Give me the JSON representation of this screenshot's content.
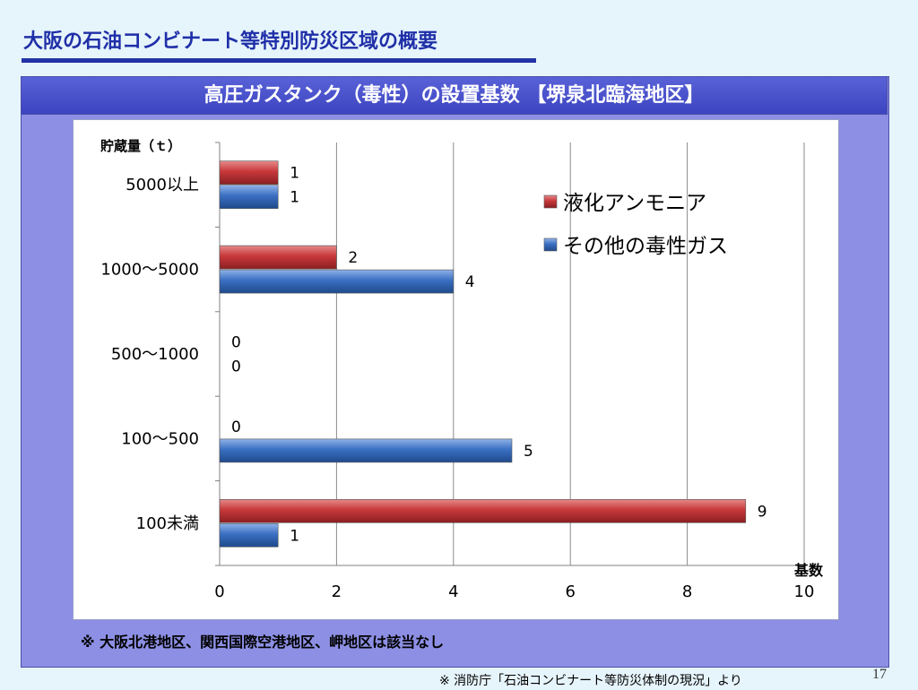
{
  "slide": {
    "title": "大阪の石油コンビナート等特別防災区域の概要",
    "note": "※ 大阪北港地区、関西国際空港地区、岬地区は該当なし",
    "source": "※ 消防庁「石油コンビナート等防災体制の現況」より",
    "page_number": "17"
  },
  "colors": {
    "series_red": "#c0383a",
    "series_blue": "#3a6fc2",
    "panel": "#8c8fe3",
    "title_text": "#1f2fa8"
  },
  "chart_data": {
    "type": "bar",
    "orientation": "horizontal",
    "title": "高圧ガスタンク（毒性）の設置基数 【堺泉北臨海地区】",
    "ylabel": "貯蔵量（ｔ）",
    "xlabel": "基数",
    "categories": [
      "5000以上",
      "1000～5000",
      "500～1000",
      "100～500",
      "100未満"
    ],
    "series": [
      {
        "name": "液化アンモニア",
        "color": "#c0383a",
        "values": [
          1,
          2,
          0,
          0,
          9
        ]
      },
      {
        "name": "その他の毒性ガス",
        "color": "#3a6fc2",
        "values": [
          1,
          4,
          0,
          5,
          1
        ]
      }
    ],
    "xlim": [
      0,
      10
    ],
    "xticks": [
      0,
      2,
      4,
      6,
      8,
      10
    ],
    "grid": true,
    "data_labels": true,
    "legend_position": "upper-right"
  }
}
